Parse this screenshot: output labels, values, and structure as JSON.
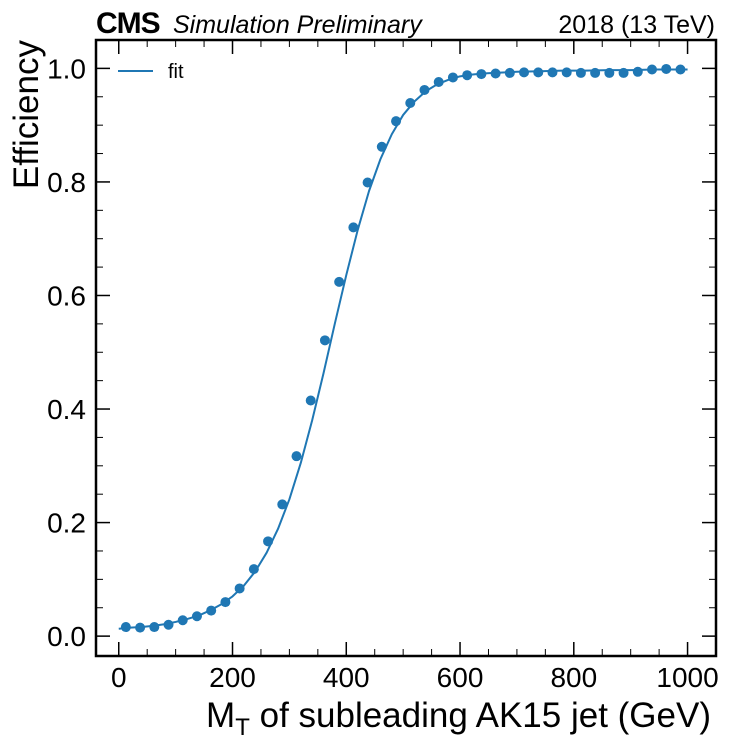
{
  "header": {
    "experiment": "CMS",
    "status": "Simulation Preliminary",
    "lumi": "2018 (13 TeV)"
  },
  "chart_data": {
    "type": "scatter",
    "xlabel_main": "M",
    "xlabel_sub": "T",
    "xlabel_rest": " of subleading AK15 jet (GeV)",
    "ylabel": "Efficiency",
    "xlim": [
      -40,
      1050
    ],
    "ylim": [
      -0.035,
      1.05
    ],
    "xticks": [
      0,
      200,
      400,
      600,
      800,
      1000
    ],
    "xtick_labels": [
      "0",
      "200",
      "400",
      "600",
      "800",
      "1000"
    ],
    "yticks": [
      0.0,
      0.2,
      0.4,
      0.6,
      0.8,
      1.0
    ],
    "ytick_labels": [
      "0.0",
      "0.2",
      "0.4",
      "0.6",
      "0.8",
      "1.0"
    ],
    "legend": {
      "position": "top-left",
      "label": "fit"
    },
    "grid": false,
    "color": "#1f77b4",
    "x": [
      12.5,
      37.5,
      62.5,
      87.5,
      112.5,
      137.5,
      162.5,
      187.5,
      212.5,
      237.5,
      262.5,
      287.5,
      312.5,
      337.5,
      362.5,
      387.5,
      412.5,
      437.5,
      462.5,
      487.5,
      512.5,
      537.5,
      562.5,
      587.5,
      612.5,
      637.5,
      662.5,
      687.5,
      712.5,
      737.5,
      762.5,
      787.5,
      812.5,
      837.5,
      862.5,
      887.5,
      912.5,
      937.5,
      962.5,
      987.5
    ],
    "y": [
      0.016,
      0.015,
      0.016,
      0.02,
      0.028,
      0.035,
      0.045,
      0.06,
      0.084,
      0.118,
      0.167,
      0.232,
      0.317,
      0.415,
      0.521,
      0.624,
      0.72,
      0.799,
      0.862,
      0.907,
      0.939,
      0.962,
      0.976,
      0.984,
      0.988,
      0.99,
      0.991,
      0.992,
      0.993,
      0.993,
      0.993,
      0.993,
      0.992,
      0.992,
      0.992,
      0.992,
      0.994,
      0.998,
      0.999,
      0.998
    ],
    "fit": {
      "x": [
        0,
        20,
        40,
        60,
        80,
        100,
        120,
        140,
        160,
        180,
        200,
        220,
        240,
        260,
        280,
        300,
        320,
        340,
        360,
        380,
        400,
        420,
        440,
        460,
        480,
        500,
        520,
        540,
        560,
        580,
        600,
        620,
        640,
        660,
        680,
        700,
        740,
        780,
        820,
        860,
        900,
        940,
        980,
        1000
      ],
      "y": [
        0.013,
        0.015,
        0.016,
        0.018,
        0.021,
        0.025,
        0.03,
        0.036,
        0.045,
        0.056,
        0.07,
        0.089,
        0.114,
        0.147,
        0.189,
        0.241,
        0.305,
        0.38,
        0.463,
        0.551,
        0.636,
        0.715,
        0.784,
        0.84,
        0.884,
        0.918,
        0.942,
        0.96,
        0.972,
        0.98,
        0.986,
        0.989,
        0.991,
        0.992,
        0.993,
        0.994,
        0.995,
        0.996,
        0.996,
        0.997,
        0.997,
        0.998,
        0.998,
        0.998
      ]
    }
  }
}
